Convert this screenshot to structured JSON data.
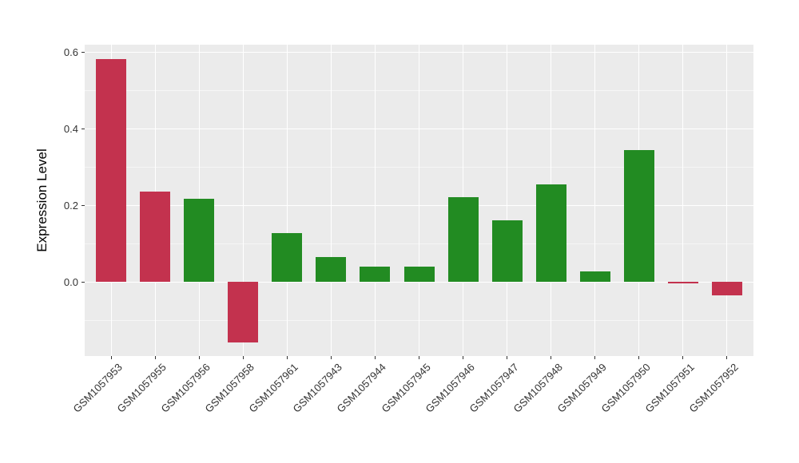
{
  "figure": {
    "background_color": "#FFFFFF",
    "panel_background_color": "#EBEBEB",
    "gridline_color": "#FFFFFF",
    "tick_mark_color": "#333333",
    "axis_text_color": "#333333",
    "axis_title_color": "#000000"
  },
  "chart_data": {
    "type": "bar",
    "title": "",
    "xlabel": "",
    "ylabel": "Expression Level",
    "categories": [
      "GSM1057953",
      "GSM1057955",
      "GSM1057956",
      "GSM1057958",
      "GSM1057961",
      "GSM1057943",
      "GSM1057944",
      "GSM1057945",
      "GSM1057946",
      "GSM1057947",
      "GSM1057948",
      "GSM1057949",
      "GSM1057950",
      "GSM1057951",
      "GSM1057952"
    ],
    "values": [
      0.583,
      0.236,
      0.217,
      -0.158,
      0.129,
      0.065,
      0.04,
      0.04,
      0.221,
      0.162,
      0.256,
      0.028,
      0.345,
      -0.004,
      -0.034
    ],
    "bar_groups": [
      "red",
      "red",
      "green",
      "red",
      "green",
      "green",
      "green",
      "green",
      "green",
      "green",
      "green",
      "green",
      "green",
      "red",
      "red"
    ],
    "palette": {
      "red": "#C3324E",
      "green": "#228B22"
    },
    "ylim": [
      -0.193,
      0.62
    ],
    "yticks": [
      0.0,
      0.2,
      0.4,
      0.6
    ],
    "ytick_labels": [
      "0.0",
      "0.2",
      "0.4",
      "0.6"
    ],
    "minor_yticks": [
      -0.1,
      0.1,
      0.3,
      0.5
    ],
    "grid": "major-and-minor-horizontal, major-vertical-at-categories",
    "legend": "none",
    "x_label_rotation_deg": 45
  }
}
